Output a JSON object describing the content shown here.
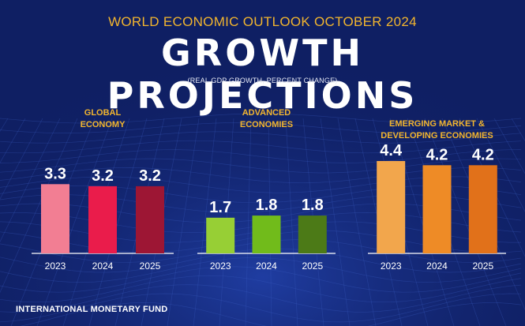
{
  "header": {
    "overline": "WORLD ECONOMIC OUTLOOK OCTOBER 2024",
    "title": "GROWTH PROJECTIONS",
    "subtitle": "(REAL GDP GROWTH, PERCENT CHANGE)"
  },
  "footer": {
    "source": "INTERNATIONAL MONETARY FUND"
  },
  "chart_data": [
    {
      "type": "bar",
      "title": "GLOBAL\nECONOMY",
      "categories": [
        "2023",
        "2024",
        "2025"
      ],
      "values": [
        3.3,
        3.2,
        3.2
      ],
      "colors": [
        "#f27e93",
        "#ea1c4b",
        "#9d1634"
      ],
      "ylim": [
        0,
        4.4
      ]
    },
    {
      "type": "bar",
      "title": "ADVANCED\nECONOMIES",
      "categories": [
        "2023",
        "2024",
        "2025"
      ],
      "values": [
        1.7,
        1.8,
        1.8
      ],
      "colors": [
        "#97cf35",
        "#71bb1b",
        "#4c7a17"
      ],
      "ylim": [
        0,
        4.4
      ]
    },
    {
      "type": "bar",
      "title": "EMERGING MARKET &\nDEVELOPING ECONOMIES",
      "categories": [
        "2023",
        "2024",
        "2025"
      ],
      "values": [
        4.4,
        4.2,
        4.2
      ],
      "colors": [
        "#f2a64c",
        "#ee8b26",
        "#e1711a"
      ],
      "ylim": [
        0,
        4.4
      ]
    }
  ]
}
